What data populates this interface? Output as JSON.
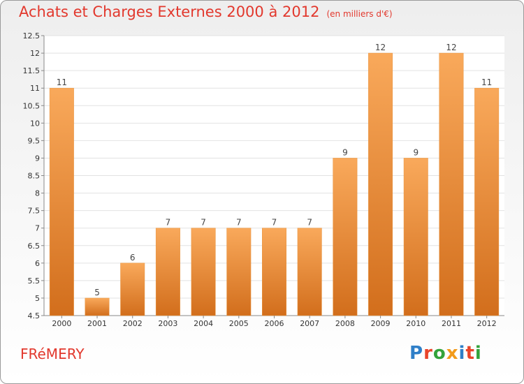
{
  "title": "Achats et Charges Externes 2000 à 2012",
  "unit": "(en milliers d'€)",
  "commune": "FRéMERY",
  "logo": {
    "text": "Proxiti",
    "colors": [
      "#2f7fc8",
      "#e9442a",
      "#33a33b",
      "#f29b1b",
      "#2f7fc8",
      "#e9442a",
      "#33a33b"
    ]
  },
  "colors": {
    "accent": "#e2382d",
    "bar_top": "#f9a95b",
    "bar_bottom": "#d26e1c",
    "grid": "#e2e2e2"
  },
  "chart_data": {
    "type": "bar",
    "categories": [
      "2000",
      "2001",
      "2002",
      "2003",
      "2004",
      "2005",
      "2006",
      "2007",
      "2008",
      "2009",
      "2010",
      "2011",
      "2012"
    ],
    "values": [
      11,
      5,
      6,
      7,
      7,
      7,
      7,
      7,
      9,
      12,
      9,
      12,
      11
    ],
    "value_labels": [
      "11",
      "5",
      "6",
      "7",
      "7",
      "7",
      "7",
      "7",
      "9",
      "12",
      "9",
      "12",
      "11"
    ],
    "ylim": [
      4.5,
      12.5
    ],
    "yticks": [
      "4.5",
      "5",
      "5.5",
      "6",
      "6.5",
      "7",
      "7.5",
      "8",
      "8.5",
      "9",
      "9.5",
      "10",
      "10.5",
      "11",
      "11.5",
      "12",
      "12.5"
    ],
    "grid": true,
    "legend": "none"
  }
}
